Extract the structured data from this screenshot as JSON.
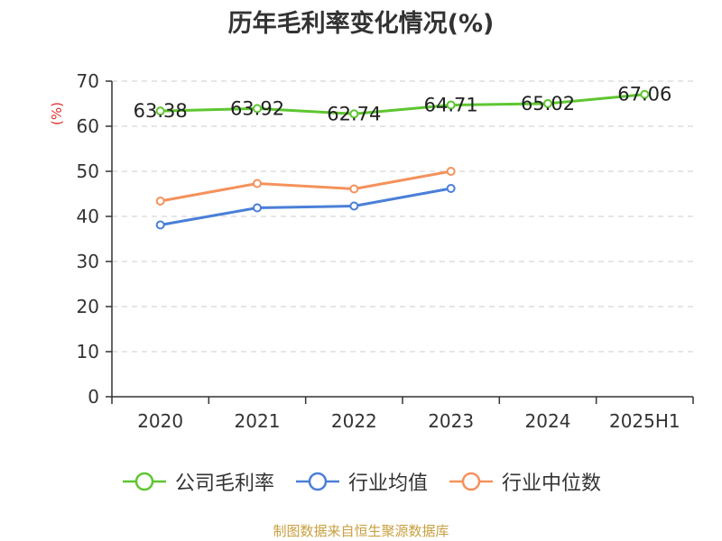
{
  "title": "历年毛利率变化情况(%)",
  "source": "制图数据来自恒生聚源数据库",
  "chart_data": {
    "type": "line",
    "title": "历年毛利率变化情况(%)",
    "ylabel": "(%)",
    "xlabel": "",
    "categories": [
      "2020",
      "2021",
      "2022",
      "2023",
      "2024",
      "2025H1"
    ],
    "ylim": [
      0,
      70
    ],
    "yticks": [
      0,
      10,
      20,
      30,
      40,
      50,
      60,
      70
    ],
    "grid": "horizontal dashed",
    "legend_position": "bottom",
    "series": [
      {
        "name": "公司毛利率",
        "color": "#5ec630",
        "values": [
          63.38,
          63.92,
          62.74,
          64.71,
          65.02,
          67.06
        ],
        "labels": [
          "63.38",
          "63.92",
          "62.74",
          "64.71",
          "65.02",
          "67.06"
        ]
      },
      {
        "name": "行业均值",
        "color": "#4a7fd8",
        "values": [
          38.1,
          41.9,
          42.3,
          46.2,
          null,
          null
        ]
      },
      {
        "name": "行业中位数",
        "color": "#f4925c",
        "values": [
          43.4,
          47.3,
          46.1,
          50.0,
          null,
          null
        ]
      }
    ]
  }
}
